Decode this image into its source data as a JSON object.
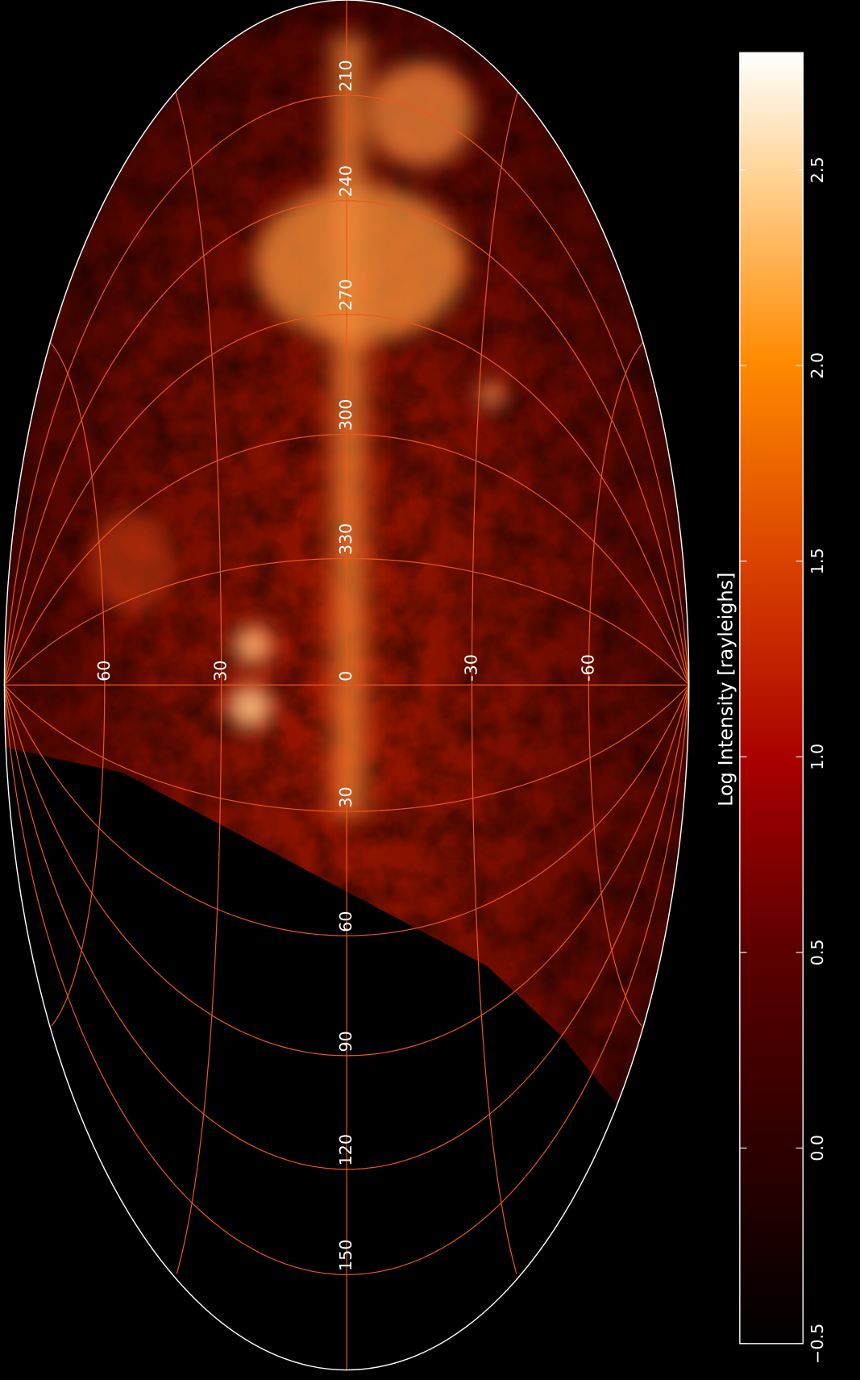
{
  "map": {
    "longitude_labels": [
      210,
      240,
      270,
      300,
      330,
      0,
      30,
      60,
      90,
      120,
      150
    ],
    "latitude_labels": [
      60,
      30,
      -30,
      -60
    ]
  },
  "colorbar": {
    "label": "Log Intensity [rayleighs]",
    "lim": [
      -0.5,
      2.8
    ],
    "ticks": [
      {
        "value": -0.5,
        "label": "−0.5"
      },
      {
        "value": 0,
        "label": "0.0"
      },
      {
        "value": 0.5,
        "label": "0.5"
      },
      {
        "value": 1,
        "label": "1.0"
      },
      {
        "value": 1.5,
        "label": "1.5"
      },
      {
        "value": 2,
        "label": "2.0"
      },
      {
        "value": 2.5,
        "label": "2.5"
      }
    ]
  }
}
